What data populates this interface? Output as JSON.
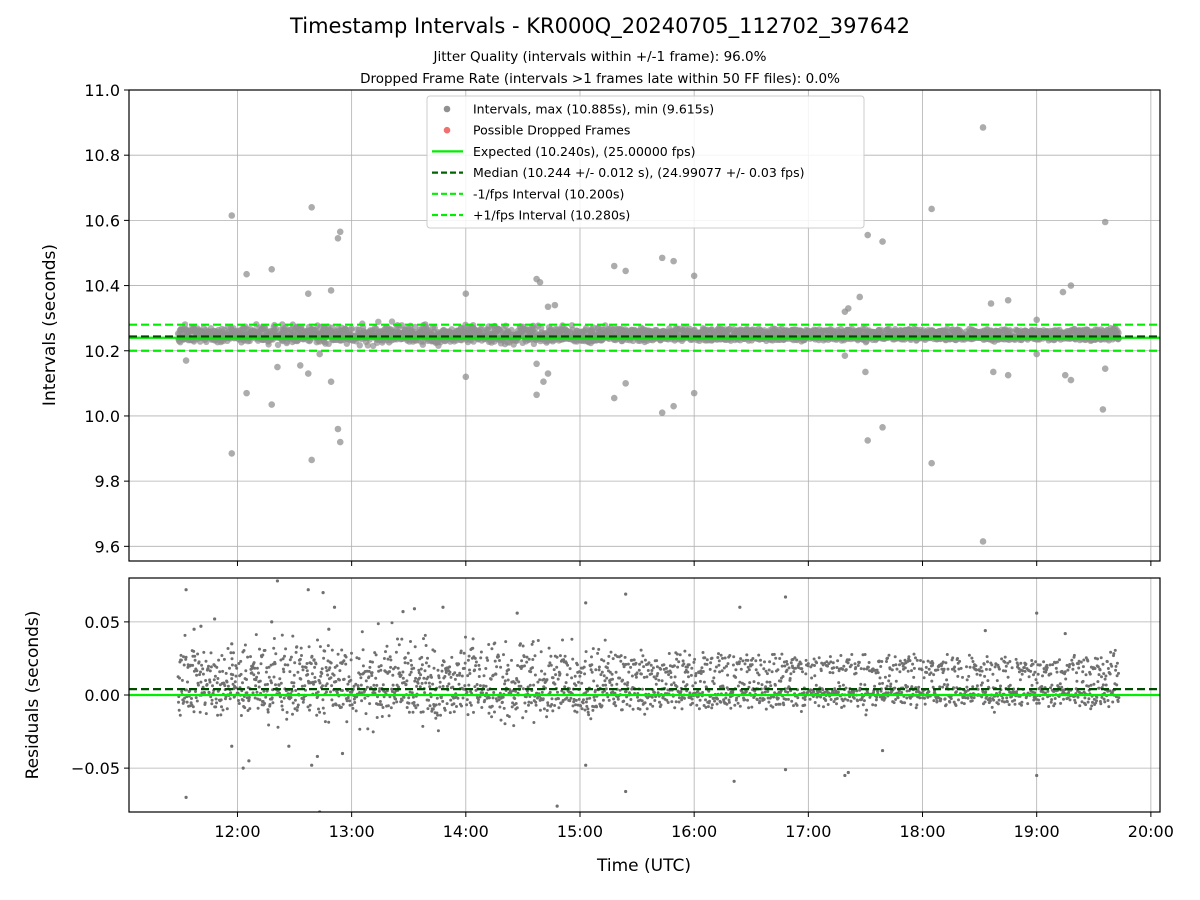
{
  "chart_data": {
    "type": "scatter",
    "title": "Timestamp Intervals - KR000Q_20240705_112702_397642",
    "subtitle_lines": [
      "Jitter Quality (intervals within +/-1 frame): 96.0%",
      "Dropped Frame Rate (intervals >1 frames late within 50 FF files): 0.0%"
    ],
    "xlabel": "Time (UTC)",
    "x_tick_labels": [
      "12:00",
      "13:00",
      "14:00",
      "15:00",
      "16:00",
      "17:00",
      "18:00",
      "19:00",
      "20:00"
    ],
    "x_tick_hours": [
      12,
      13,
      14,
      15,
      16,
      17,
      18,
      19,
      20
    ],
    "xlim_hours": [
      11.05,
      20.08
    ],
    "data_range_hours": [
      11.48,
      19.72
    ],
    "panels": [
      {
        "id": "intervals",
        "ylabel": "Intervals (seconds)",
        "ylim": [
          9.555,
          11.0
        ],
        "y_ticks": [
          9.6,
          9.8,
          10.0,
          10.2,
          10.4,
          10.6,
          10.8,
          11.0
        ],
        "y_tick_labels": [
          "9.6",
          "9.8",
          "10.0",
          "10.2",
          "10.4",
          "10.6",
          "10.8",
          "11.0"
        ],
        "grid": true,
        "legend": {
          "placement": "top-center",
          "entries": [
            {
              "label": "Intervals, max (10.885s), min (9.615s)",
              "style": "marker",
              "color": "#909090"
            },
            {
              "label": "Possible Dropped Frames",
              "style": "marker",
              "color": "#f07070"
            },
            {
              "label": "Expected (10.240s), (25.00000 fps)",
              "style": "solid",
              "color": "#00ee00"
            },
            {
              "label": "Median (10.244 +/- 0.012 s), (24.99077 +/- 0.03 fps)",
              "style": "dashed",
              "color": "#006400"
            },
            {
              "label": "-1/fps Interval (10.200s)",
              "style": "dashed",
              "color": "#00ee00"
            },
            {
              "label": "+1/fps Interval (10.280s)",
              "style": "dashed",
              "color": "#00ee00"
            }
          ]
        },
        "lines": [
          {
            "name": "expected",
            "y": 10.24,
            "style": "solid",
            "color": "#00ee00"
          },
          {
            "name": "median",
            "y": 10.244,
            "style": "dashed",
            "color": "#004d00"
          },
          {
            "name": "minus-1-fps",
            "y": 10.2,
            "style": "dashed",
            "color": "#00ee00"
          },
          {
            "name": "plus-1-fps",
            "y": 10.28,
            "style": "dashed",
            "color": "#00ee00"
          }
        ],
        "outliers": [
          [
            11.55,
            10.17
          ],
          [
            11.95,
            10.615
          ],
          [
            11.95,
            9.885
          ],
          [
            12.08,
            10.435
          ],
          [
            12.08,
            10.07
          ],
          [
            12.3,
            10.45
          ],
          [
            12.3,
            10.035
          ],
          [
            12.35,
            10.15
          ],
          [
            12.55,
            10.155
          ],
          [
            12.62,
            10.375
          ],
          [
            12.62,
            10.13
          ],
          [
            12.65,
            10.64
          ],
          [
            12.65,
            9.865
          ],
          [
            12.72,
            10.19
          ],
          [
            12.82,
            10.385
          ],
          [
            12.82,
            10.105
          ],
          [
            12.88,
            10.545
          ],
          [
            12.9,
            10.565
          ],
          [
            12.88,
            9.96
          ],
          [
            12.9,
            9.92
          ],
          [
            14.0,
            10.375
          ],
          [
            14.0,
            10.12
          ],
          [
            14.62,
            10.42
          ],
          [
            14.65,
            10.41
          ],
          [
            14.62,
            10.16
          ],
          [
            14.68,
            10.105
          ],
          [
            14.62,
            10.065
          ],
          [
            14.72,
            10.13
          ],
          [
            14.72,
            10.335
          ],
          [
            14.78,
            10.34
          ],
          [
            15.3,
            10.46
          ],
          [
            15.3,
            10.055
          ],
          [
            15.4,
            10.445
          ],
          [
            15.4,
            10.1
          ],
          [
            15.72,
            10.485
          ],
          [
            15.72,
            10.01
          ],
          [
            15.82,
            10.475
          ],
          [
            15.82,
            10.03
          ],
          [
            16.0,
            10.43
          ],
          [
            16.0,
            10.07
          ],
          [
            17.32,
            10.32
          ],
          [
            17.35,
            10.33
          ],
          [
            17.32,
            10.185
          ],
          [
            17.45,
            10.365
          ],
          [
            17.5,
            10.135
          ],
          [
            17.52,
            10.555
          ],
          [
            17.52,
            9.925
          ],
          [
            17.65,
            10.535
          ],
          [
            17.65,
            9.965
          ],
          [
            18.08,
            10.635
          ],
          [
            18.08,
            9.855
          ],
          [
            18.53,
            10.885
          ],
          [
            18.53,
            9.615
          ],
          [
            18.6,
            10.345
          ],
          [
            18.62,
            10.135
          ],
          [
            18.75,
            10.355
          ],
          [
            18.75,
            10.125
          ],
          [
            19.0,
            10.295
          ],
          [
            19.0,
            10.19
          ],
          [
            19.23,
            10.38
          ],
          [
            19.25,
            10.125
          ],
          [
            19.3,
            10.4
          ],
          [
            19.3,
            10.11
          ],
          [
            19.6,
            10.595
          ],
          [
            19.6,
            10.145
          ],
          [
            19.58,
            10.02
          ]
        ]
      },
      {
        "id": "residuals",
        "ylabel": "Residuals (seconds)",
        "ylim": [
          -0.08,
          0.08
        ],
        "y_ticks": [
          -0.05,
          0.0,
          0.05
        ],
        "y_tick_labels": [
          "−0.05",
          "0.00",
          "0.05"
        ],
        "grid": true,
        "lines": [
          {
            "name": "residual-median",
            "y": 0.004,
            "style": "dashed",
            "color": "#004d00"
          },
          {
            "name": "residual-zero",
            "y": 0.0,
            "style": "solid",
            "color": "#00ee00"
          }
        ],
        "outliers": [
          [
            11.55,
            0.072
          ],
          [
            11.55,
            -0.07
          ],
          [
            11.62,
            0.045
          ],
          [
            11.68,
            0.047
          ],
          [
            11.8,
            0.052
          ],
          [
            11.95,
            0.035
          ],
          [
            11.95,
            -0.035
          ],
          [
            12.05,
            -0.05
          ],
          [
            12.1,
            -0.045
          ],
          [
            12.35,
            0.078
          ],
          [
            12.3,
            0.05
          ],
          [
            12.45,
            -0.035
          ],
          [
            12.62,
            0.072
          ],
          [
            12.65,
            -0.048
          ],
          [
            12.7,
            -0.042
          ],
          [
            12.75,
            0.07
          ],
          [
            12.72,
            -0.08
          ],
          [
            12.8,
            0.045
          ],
          [
            12.85,
            0.06
          ],
          [
            12.92,
            -0.04
          ],
          [
            13.45,
            0.057
          ],
          [
            13.55,
            0.059
          ],
          [
            13.8,
            0.06
          ],
          [
            14.45,
            0.056
          ],
          [
            14.8,
            -0.076
          ],
          [
            15.05,
            0.063
          ],
          [
            15.05,
            -0.048
          ],
          [
            15.4,
            0.069
          ],
          [
            15.4,
            -0.066
          ],
          [
            16.4,
            0.06
          ],
          [
            16.35,
            -0.059
          ],
          [
            16.8,
            0.067
          ],
          [
            16.8,
            -0.051
          ],
          [
            17.35,
            -0.053
          ],
          [
            17.32,
            -0.055
          ],
          [
            17.65,
            -0.038
          ],
          [
            18.55,
            0.044
          ],
          [
            19.0,
            0.056
          ],
          [
            19.0,
            -0.055
          ],
          [
            19.25,
            0.042
          ]
        ]
      }
    ]
  }
}
